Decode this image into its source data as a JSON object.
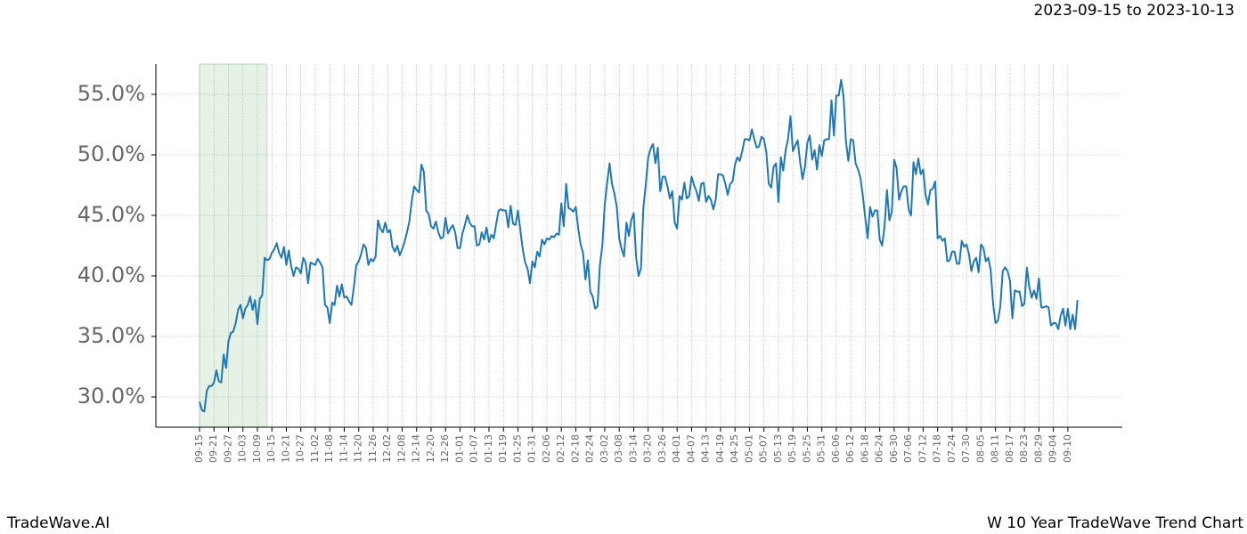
{
  "chart_data": {
    "type": "line",
    "title": "2023-09-15 to 2023-10-13",
    "footer_left": "TradeWave.AI",
    "footer_right": "W 10 Year TradeWave Trend Chart",
    "color": "#1f77b4",
    "grid": true,
    "highlight": {
      "from": 0,
      "to": 28,
      "color": "#e6f2e6"
    },
    "ylim": [
      27.5,
      57.5
    ],
    "yticks": [
      {
        "value": 30,
        "label": "30.0%"
      },
      {
        "value": 35,
        "label": "35.0%"
      },
      {
        "value": 40,
        "label": "40.0%"
      },
      {
        "value": 45,
        "label": "45.0%"
      },
      {
        "value": 50,
        "label": "50.0%"
      },
      {
        "value": 55,
        "label": "55.0%"
      }
    ],
    "categories": [
      "09-15",
      null,
      null,
      null,
      null,
      null,
      "09-21",
      null,
      null,
      null,
      null,
      null,
      "09-27",
      null,
      null,
      null,
      null,
      null,
      "10-03",
      null,
      null,
      null,
      null,
      null,
      "10-09",
      null,
      null,
      null,
      null,
      null,
      "10-15",
      null,
      null,
      null,
      null,
      null,
      "10-21",
      null,
      null,
      null,
      null,
      null,
      "10-27",
      null,
      null,
      null,
      null,
      null,
      "11-02",
      null,
      null,
      null,
      null,
      null,
      "11-08",
      null,
      null,
      null,
      null,
      null,
      "11-14",
      null,
      null,
      null,
      null,
      null,
      "11-20",
      null,
      null,
      null,
      null,
      null,
      "11-26",
      null,
      null,
      null,
      null,
      null,
      "12-02",
      null,
      null,
      null,
      null,
      null,
      "12-08",
      null,
      null,
      null,
      null,
      null,
      "12-14",
      null,
      null,
      null,
      null,
      null,
      "12-20",
      null,
      null,
      null,
      null,
      null,
      "12-26",
      null,
      null,
      null,
      null,
      null,
      "01-01",
      null,
      null,
      null,
      null,
      null,
      "01-07",
      null,
      null,
      null,
      null,
      null,
      "01-13",
      null,
      null,
      null,
      null,
      null,
      "01-19",
      null,
      null,
      null,
      null,
      null,
      "01-25",
      null,
      null,
      null,
      null,
      null,
      "01-31",
      null,
      null,
      null,
      null,
      null,
      "02-06",
      null,
      null,
      null,
      null,
      null,
      "02-12",
      null,
      null,
      null,
      null,
      null,
      "02-18",
      null,
      null,
      null,
      null,
      null,
      "02-24",
      null,
      null,
      null,
      null,
      null,
      "03-02",
      null,
      null,
      null,
      null,
      null,
      "03-08",
      null,
      null,
      null,
      null,
      null,
      "03-14",
      null,
      null,
      null,
      null,
      null,
      "03-20",
      null,
      null,
      null,
      null,
      null,
      "03-26",
      null,
      null,
      null,
      null,
      null,
      "04-01",
      null,
      null,
      null,
      null,
      null,
      "04-07",
      null,
      null,
      null,
      null,
      null,
      "04-13",
      null,
      null,
      null,
      null,
      null,
      "04-19",
      null,
      null,
      null,
      null,
      null,
      "04-25",
      null,
      null,
      null,
      null,
      null,
      "05-01",
      null,
      null,
      null,
      null,
      null,
      "05-07",
      null,
      null,
      null,
      null,
      null,
      "05-13",
      null,
      null,
      null,
      null,
      null,
      "05-19",
      null,
      null,
      null,
      null,
      null,
      "05-25",
      null,
      null,
      null,
      null,
      null,
      "05-31",
      null,
      null,
      null,
      null,
      null,
      "06-06",
      null,
      null,
      null,
      null,
      null,
      "06-12",
      null,
      null,
      null,
      null,
      null,
      "06-18",
      null,
      null,
      null,
      null,
      null,
      "06-24",
      null,
      null,
      null,
      null,
      null,
      "06-30",
      null,
      null,
      null,
      null,
      null,
      "07-06",
      null,
      null,
      null,
      null,
      null,
      "07-12",
      null,
      null,
      null,
      null,
      null,
      "07-18",
      null,
      null,
      null,
      null,
      null,
      "07-24",
      null,
      null,
      null,
      null,
      null,
      "07-30",
      null,
      null,
      null,
      null,
      null,
      "08-05",
      null,
      null,
      null,
      null,
      null,
      "08-11",
      null,
      null,
      null,
      null,
      null,
      "08-17",
      null,
      null,
      null,
      null,
      null,
      "08-23",
      null,
      null,
      null,
      null,
      null,
      "08-29",
      null,
      null,
      null,
      null,
      null,
      "09-04",
      null,
      null,
      null,
      null,
      null,
      "09-10",
      null,
      null,
      null,
      null
    ],
    "values": [
      29.6,
      28.9,
      28.8,
      30.5,
      30.9,
      30.9,
      31.2,
      32.2,
      31.3,
      31.2,
      33.5,
      32.4,
      34.6,
      35.3,
      35.4,
      36.1,
      37.2,
      37.6,
      36.5,
      37.3,
      37.6,
      38.3,
      37.2,
      38.0,
      36.0,
      38.1,
      38.4,
      41.5,
      41.3,
      41.4,
      41.9,
      42.2,
      42.7,
      41.9,
      41.5,
      42.4,
      40.9,
      42.1,
      40.8,
      40.0,
      40.7,
      40.6,
      40.2,
      41.5,
      41.1,
      39.4,
      41.1,
      41.0,
      40.9,
      41.4,
      41.1,
      40.7,
      37.6,
      37.4,
      36.1,
      37.8,
      37.6,
      39.2,
      38.3,
      39.3,
      38.2,
      38.3,
      37.9,
      37.6,
      39.1,
      40.9,
      41.2,
      41.8,
      42.6,
      42.3,
      40.9,
      41.4,
      41.2,
      41.6,
      44.6,
      43.9,
      43.6,
      44.4,
      43.6,
      43.8,
      42.4,
      42.0,
      42.5,
      41.7,
      42.2,
      42.8,
      43.6,
      44.5,
      46.2,
      47.4,
      47.1,
      46.9,
      49.2,
      48.6,
      45.4,
      45.1,
      44.1,
      43.9,
      44.5,
      43.6,
      43.1,
      43.2,
      44.8,
      43.5,
      43.9,
      44.2,
      43.6,
      42.3,
      42.3,
      43.5,
      44.2,
      45.0,
      44.4,
      44.1,
      44.1,
      42.5,
      42.6,
      43.6,
      43.0,
      44.0,
      42.8,
      43.4,
      43.1,
      44.3,
      45.4,
      45.5,
      45.4,
      45.4,
      44.0,
      45.8,
      44.3,
      44.2,
      45.4,
      43.8,
      42.2,
      41.1,
      40.6,
      39.4,
      41.2,
      40.7,
      42.0,
      41.6,
      43.0,
      42.6,
      43.1,
      43.0,
      43.3,
      43.2,
      43.5,
      43.4,
      46.0,
      44.1,
      47.6,
      45.6,
      45.5,
      45.3,
      45.7,
      43.9,
      42.6,
      41.9,
      39.7,
      41.3,
      38.7,
      38.3,
      37.3,
      37.5,
      40.9,
      42.5,
      45.9,
      47.7,
      49.3,
      47.6,
      46.8,
      45.7,
      43.1,
      42.2,
      41.6,
      44.4,
      43.3,
      44.6,
      45.2,
      41.6,
      40.0,
      40.6,
      45.6,
      47.5,
      49.8,
      50.5,
      50.9,
      49.3,
      50.6,
      47.0,
      48.2,
      48.2,
      47.4,
      46.4,
      47.0,
      44.4,
      43.9,
      46.6,
      46.3,
      47.7,
      46.4,
      46.6,
      48.2,
      47.5,
      47.0,
      46.2,
      47.6,
      47.7,
      46.1,
      46.6,
      46.3,
      45.5,
      46.3,
      48.4,
      48.4,
      48.3,
      47.6,
      46.7,
      47.6,
      47.8,
      49.2,
      49.8,
      49.5,
      50.3,
      51.3,
      51.3,
      51.2,
      52.1,
      51.3,
      50.6,
      50.7,
      51.5,
      51.3,
      50.2,
      47.6,
      47.3,
      49.0,
      49.3,
      46.1,
      49.8,
      48.7,
      50.4,
      51.3,
      53.2,
      50.3,
      50.8,
      51.2,
      49.4,
      48.0,
      49.0,
      51.0,
      51.6,
      49.6,
      50.4,
      48.8,
      50.8,
      49.9,
      51.2,
      51.3,
      51.3,
      54.5,
      51.6,
      54.9,
      54.9,
      56.2,
      54.8,
      51.1,
      49.5,
      51.3,
      51.2,
      49.3,
      48.8,
      48.1,
      46.6,
      44.8,
      43.1,
      45.7,
      44.9,
      45.4,
      45.4,
      43.0,
      42.5,
      44.1,
      47.1,
      44.6,
      45.3,
      49.6,
      48.9,
      46.3,
      47.0,
      47.4,
      47.4,
      45.5,
      45.0,
      49.4,
      48.4,
      49.7,
      48.4,
      48.8,
      46.7,
      45.9,
      47.1,
      47.2,
      47.8,
      43.1,
      43.3,
      42.9,
      43.1,
      41.2,
      41.3,
      42.0,
      42.0,
      41.0,
      41.0,
      42.9,
      42.4,
      42.6,
      41.8,
      40.4,
      41.2,
      41.5,
      40.3,
      42.6,
      42.3,
      41.2,
      41.5,
      40.5,
      37.7,
      36.1,
      36.3,
      37.5,
      40.4,
      40.7,
      40.4,
      39.6,
      36.5,
      38.8,
      38.7,
      38.7,
      37.5,
      37.7,
      40.7,
      39.1,
      38.2,
      38.8,
      38.1,
      39.8,
      37.4,
      37.4,
      37.5,
      37.4,
      35.9,
      36.1,
      36.1,
      35.6,
      36.7,
      37.3,
      35.9,
      37.3,
      35.6,
      36.8,
      35.6,
      38.0
    ]
  }
}
